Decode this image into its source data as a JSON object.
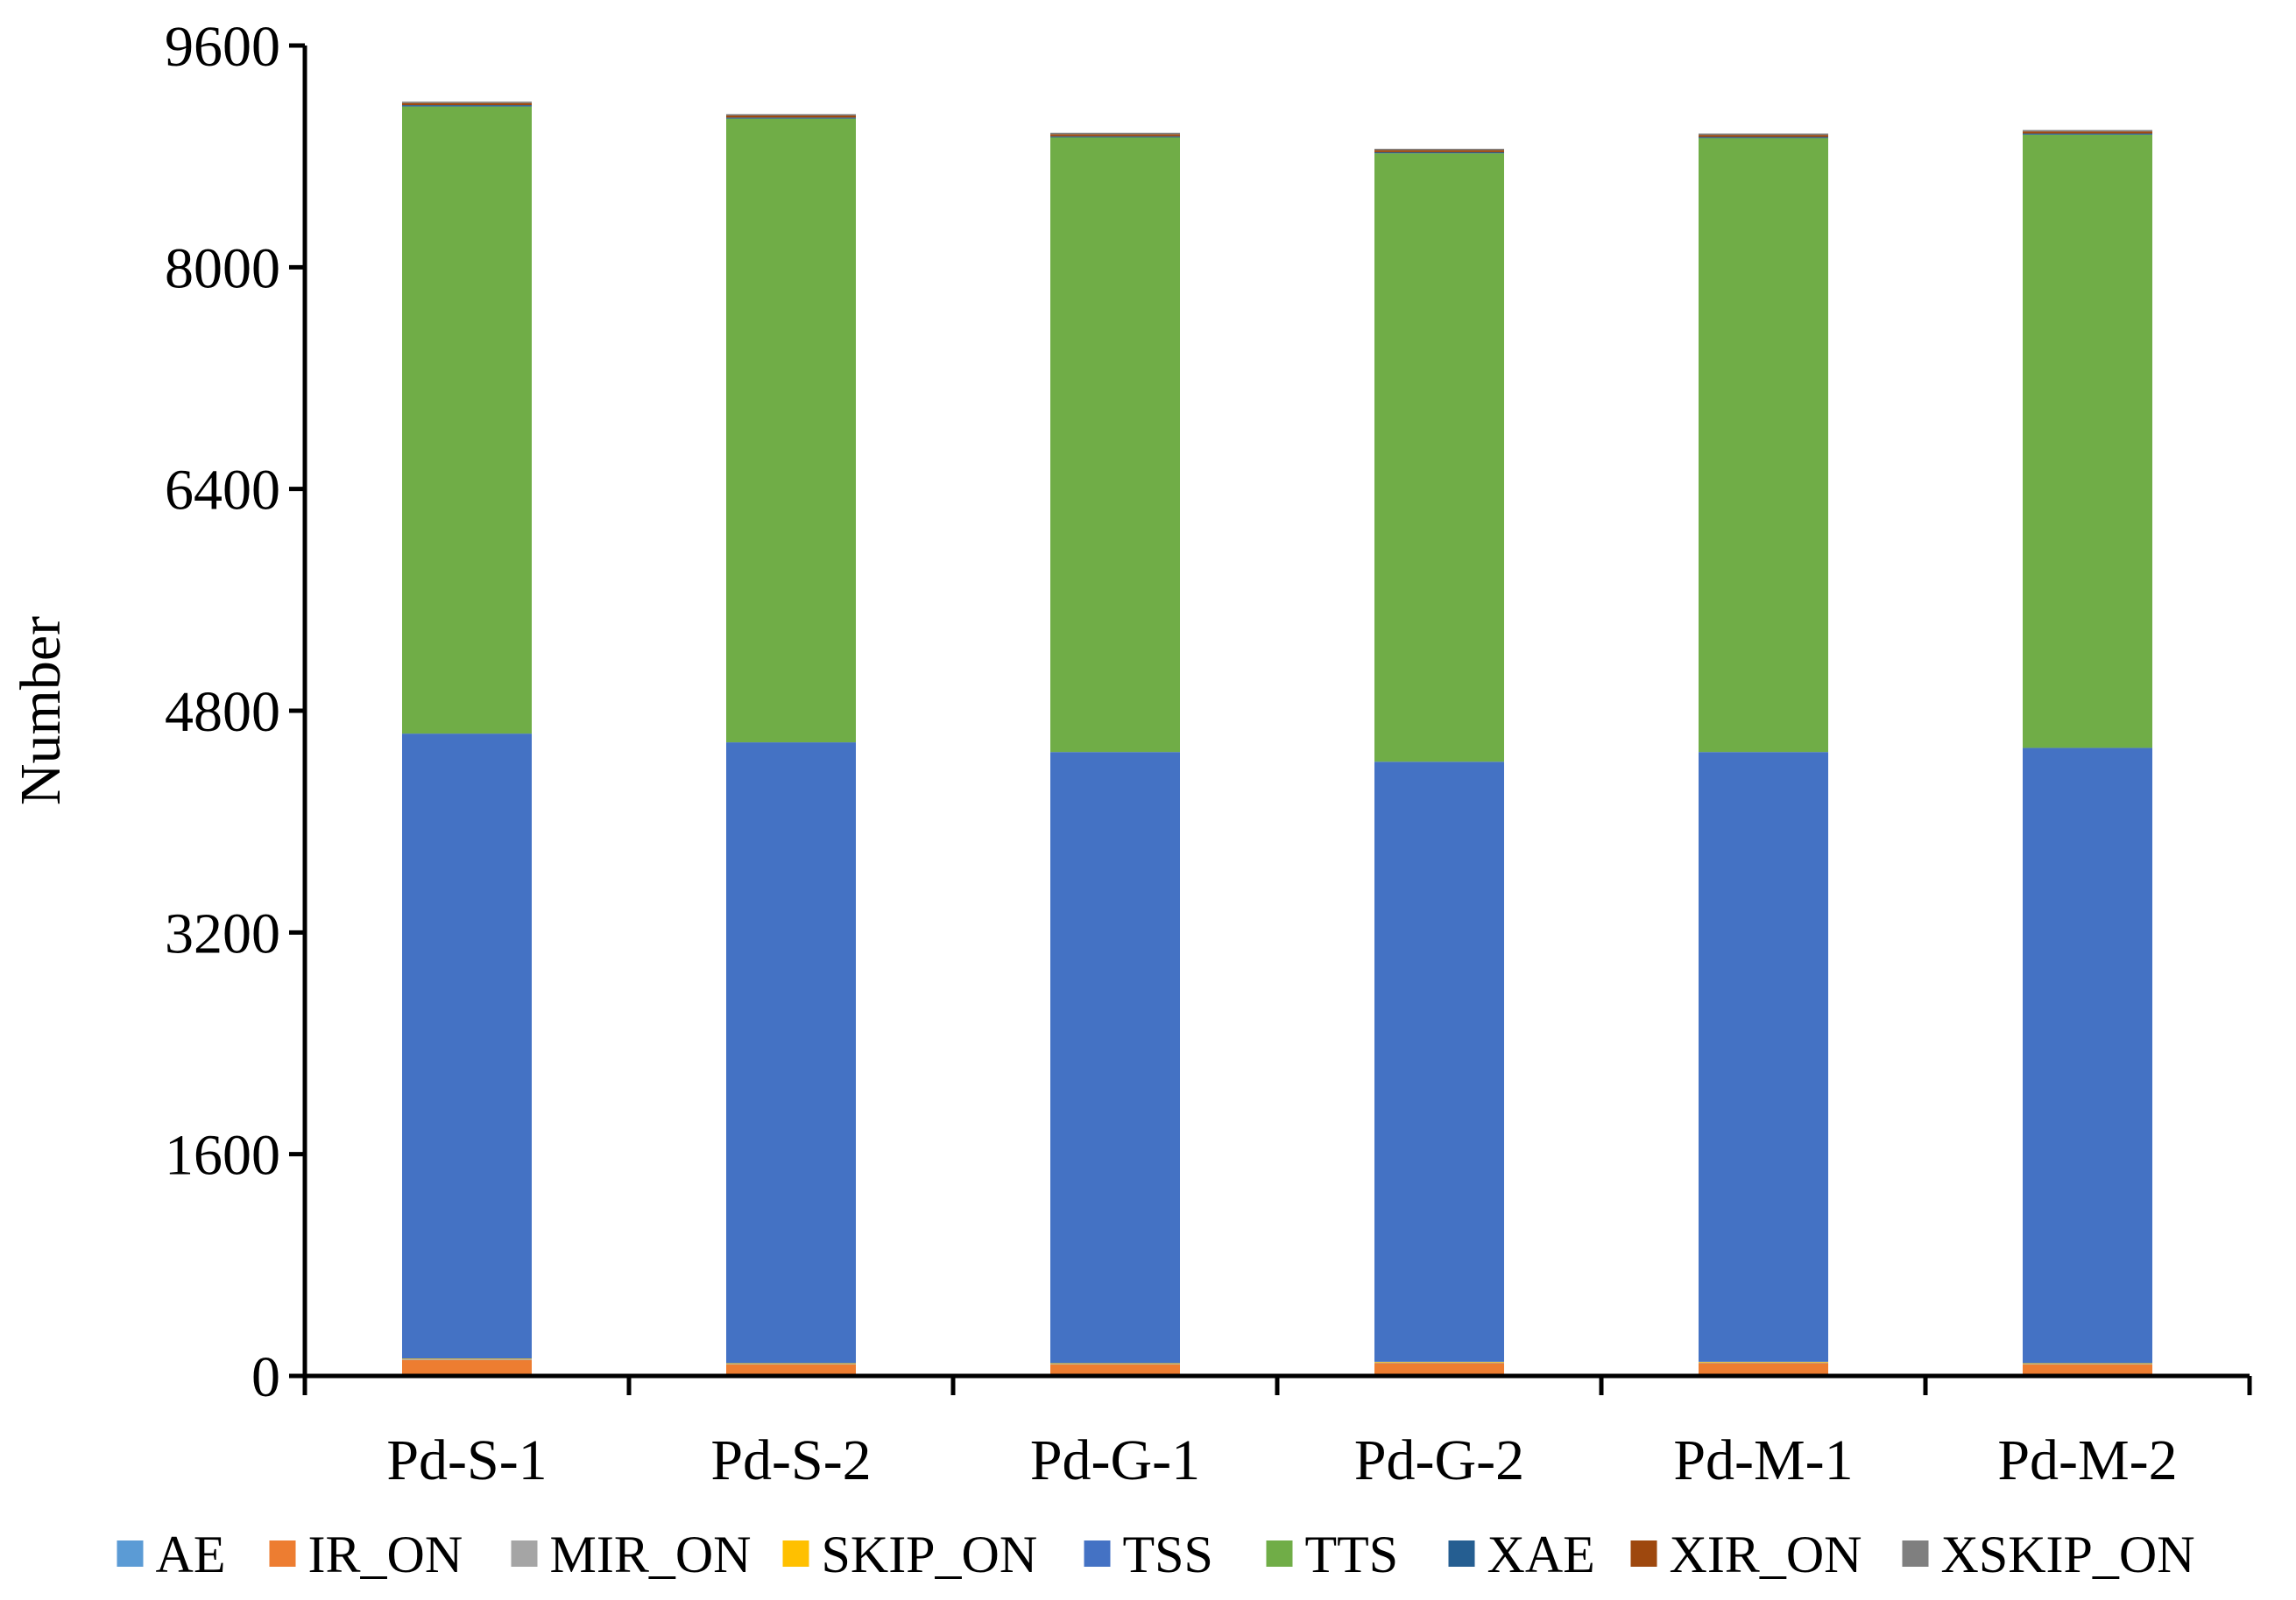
{
  "chart_data": {
    "type": "bar",
    "stacked": true,
    "title": "",
    "xlabel": "",
    "ylabel": "Number",
    "ylim": [
      0,
      9600
    ],
    "yticks": [
      0,
      1600,
      3200,
      4800,
      6400,
      8000,
      9600
    ],
    "grid": false,
    "legend_position": "bottom",
    "categories": [
      "Pd-S-1",
      "Pd-S-2",
      "Pd-G-1",
      "Pd-G-2",
      "Pd-M-1",
      "Pd-M-2"
    ],
    "series": [
      {
        "name": "AE",
        "color": "#5B9BD5",
        "values": [
          15,
          12,
          12,
          12,
          12,
          12
        ]
      },
      {
        "name": "IR_ON",
        "color": "#ED7D31",
        "values": [
          100,
          70,
          70,
          80,
          80,
          70
        ]
      },
      {
        "name": "MIR_ON",
        "color": "#A5A5A5",
        "values": [
          5,
          5,
          5,
          5,
          5,
          5
        ]
      },
      {
        "name": "SKIP_ON",
        "color": "#FFC000",
        "values": [
          5,
          5,
          5,
          5,
          5,
          5
        ]
      },
      {
        "name": "TSS",
        "color": "#4472C4",
        "values": [
          4510,
          4480,
          4410,
          4330,
          4400,
          4440
        ]
      },
      {
        "name": "TTS",
        "color": "#70AD47",
        "values": [
          4525,
          4500,
          4435,
          4390,
          4430,
          4425
        ]
      },
      {
        "name": "XAE",
        "color": "#255E91",
        "values": [
          10,
          8,
          8,
          8,
          8,
          8
        ]
      },
      {
        "name": "XIR_ON",
        "color": "#9E480E",
        "values": [
          15,
          15,
          15,
          15,
          15,
          15
        ]
      },
      {
        "name": "XSKIP_ON",
        "color": "#7F7F7F",
        "values": [
          10,
          10,
          10,
          10,
          10,
          10
        ]
      }
    ]
  }
}
